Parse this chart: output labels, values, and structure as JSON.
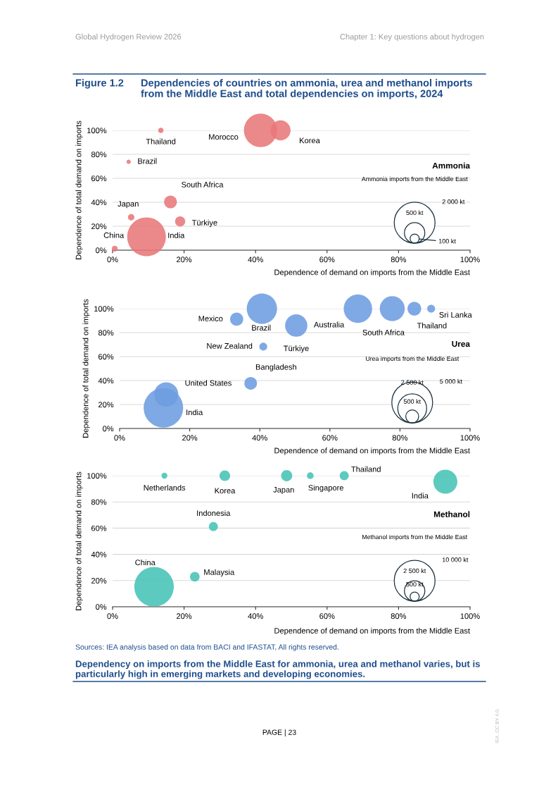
{
  "chart_data": [
    {
      "type": "bubble",
      "title": "Figure 1.2",
      "subtitle": "Dependencies of countries on ammonia, urea and methanol imports\nfrom the Middle East and total dependencies on imports, 2024",
      "xlabel": "Dependence of demand on imports from the Middle East",
      "ylabel": "Dependence of total demand on imports",
      "legend_title": "Ammonia imports from the Middle East",
      "series": [
        {
          "color": "#e8777a",
          "x": [
            13.5,
            4.5,
            41.4,
            47,
            16.2,
            5.2,
            18.9,
            9.5,
            0.6
          ],
          "values": [
            100,
            73.8,
            100,
            100,
            40.3,
            27.5,
            24,
            11.2,
            1.3
          ],
          "sizes": [
            34,
            22,
            1330,
            480,
            197,
            49,
            123,
            1800,
            41
          ]
        }
      ],
      "size_legend": [
        {
          "value": 2000,
          "label": "2 000 kt"
        },
        {
          "value": 500,
          "label": "500 kt"
        },
        {
          "value": 100,
          "label": "100 kt"
        }
      ],
      "xlim": [
        0,
        100
      ],
      "ylim": [
        0,
        100
      ],
      "xticks": [
        {
          "value": 0,
          "label": "0%"
        },
        {
          "value": 20,
          "label": "20%"
        },
        {
          "value": 40,
          "label": "40%"
        },
        {
          "value": 60,
          "label": "60%"
        },
        {
          "value": 80,
          "label": "80%"
        },
        {
          "value": 100,
          "label": "100%"
        }
      ],
      "yticks": [
        {
          "value": 0,
          "label": "0%"
        },
        {
          "value": 20,
          "label": "20%"
        },
        {
          "value": 40,
          "label": "40%"
        },
        {
          "value": 60,
          "label": "60%"
        },
        {
          "value": 80,
          "label": "80%"
        },
        {
          "value": 100,
          "label": "100%"
        }
      ],
      "grid": "y",
      "legend": false,
      "marker": "circle",
      "annotations": [
        "Global Hydrogen Review 2026",
        "Chapter 1: Key questions about hydrogen",
        "Ammonia",
        {
          "text": "Thailand",
          "x": 13.5,
          "y": 100
        },
        {
          "text": "Brazil",
          "x": 4.5,
          "y": 73.8
        },
        {
          "text": "Korea",
          "x": 47,
          "y": 100
        },
        {
          "text": "South Africa",
          "x": 16.2,
          "y": 40.3
        },
        {
          "text": "Japan",
          "x": 5.2,
          "y": 27.5
        },
        {
          "text": "Türkiye",
          "x": 18.9,
          "y": 24
        },
        {
          "text": "China",
          "x": 0.6,
          "y": 1.3
        },
        "Morocco",
        "India"
      ]
    },
    {
      "type": "bubble",
      "xlabel": "Dependence of demand on imports from the Middle East",
      "ylabel": "Dependence of total demand on imports",
      "legend_title": "Urea imports from the Middle East",
      "series": [
        {
          "color": "#6d9de0",
          "x": [
            33.4,
            40.6,
            50.4,
            41,
            68,
            77.8,
            84.1,
            88.9,
            37.4,
            13.3,
            12.5
          ],
          "values": [
            91.2,
            100,
            85.9,
            68.3,
            100,
            100,
            100,
            100,
            37.7,
            28.4,
            17.2
          ],
          "sizes": [
            520,
            2750,
            1500,
            187,
            2430,
            1880,
            563,
            187,
            480,
            1760,
            4680
          ]
        }
      ],
      "size_legend": [
        {
          "value": 5000,
          "label": "5 000 kt"
        },
        {
          "value": 2500,
          "label": "2 500 kt"
        },
        {
          "value": 500,
          "label": "500 kt"
        }
      ],
      "xlim": [
        0,
        100
      ],
      "ylim": [
        0,
        100
      ],
      "xticks": [
        {
          "value": 0,
          "label": "0%"
        },
        {
          "value": 20,
          "label": "20%"
        },
        {
          "value": 40,
          "label": "40%"
        },
        {
          "value": 60,
          "label": "60%"
        },
        {
          "value": 80,
          "label": "80%"
        },
        {
          "value": 100,
          "label": "100%"
        }
      ],
      "yticks": [
        {
          "value": 0,
          "label": "0%"
        },
        {
          "value": 20,
          "label": "20%"
        },
        {
          "value": 40,
          "label": "40%"
        },
        {
          "value": 60,
          "label": "60%"
        },
        {
          "value": 80,
          "label": "80%"
        },
        {
          "value": 100,
          "label": "100%"
        }
      ],
      "grid": "y",
      "legend": false,
      "marker": "circle",
      "annotations": [
        "Urea",
        {
          "text": "Mexico",
          "x": 33.4,
          "y": 91.2
        },
        {
          "text": "Türkiye",
          "x": 50.4,
          "y": 85.9
        },
        {
          "text": "New Zealand",
          "x": 41,
          "y": 68.3
        },
        {
          "text": "Australia",
          "x": 68,
          "y": 100
        },
        {
          "text": "South Africa",
          "x": 77.8,
          "y": 100
        },
        {
          "text": "Thailand",
          "x": 84.1,
          "y": 100
        },
        {
          "text": "Sri Lanka",
          "x": 88.9,
          "y": 100
        },
        {
          "text": "Bangladesh",
          "x": 37.4,
          "y": 37.7
        },
        {
          "text": "United States",
          "x": 13.3,
          "y": 28.4
        },
        "Brazil",
        "India"
      ]
    },
    {
      "type": "bubble",
      "xlabel": "Dependence of demand on imports from the Middle East",
      "ylabel": "Dependence of total demand on imports",
      "legend_title": "Methanol imports from the Middle East",
      "series": [
        {
          "color": "#45c3b6",
          "x": [
            14.5,
            31.4,
            48.7,
            55.3,
            64.8,
            93.1,
            28.2,
            11.6,
            23
          ],
          "values": [
            100,
            100,
            100,
            100,
            100,
            95.4,
            61.2,
            15.3,
            22.9
          ],
          "sizes": [
            210,
            680,
            750,
            270,
            490,
            3460,
            490,
            9360,
            550
          ]
        }
      ],
      "size_legend": [
        {
          "value": 10000,
          "label": "10 000 kt"
        },
        {
          "value": 2500,
          "label": "2 500 kt"
        },
        {
          "value": 500,
          "label": "500 kt"
        }
      ],
      "xlim": [
        0,
        100
      ],
      "ylim": [
        0,
        100
      ],
      "xticks": [
        {
          "value": 0,
          "label": "0%"
        },
        {
          "value": 20,
          "label": "20%"
        },
        {
          "value": 40,
          "label": "40%"
        },
        {
          "value": 60,
          "label": "60%"
        },
        {
          "value": 80,
          "label": "80%"
        },
        {
          "value": 100,
          "label": "100%"
        }
      ],
      "yticks": [
        {
          "value": 0,
          "label": "0%"
        },
        {
          "value": 20,
          "label": "20%"
        },
        {
          "value": 40,
          "label": "40%"
        },
        {
          "value": 60,
          "label": "60%"
        },
        {
          "value": 80,
          "label": "80%"
        },
        {
          "value": 100,
          "label": "100%"
        }
      ],
      "grid": "y",
      "legend": false,
      "marker": "circle",
      "annotations": [
        "Methanol",
        "Sources: IEA analysis based on data from BACI and IFASTAT, All rights reserved.",
        "Dependency on imports from the Middle East for ammonia, urea and methanol varies, but is\nparticularly high in emerging markets and developing economies.",
        "PAGE | 23",
        "IEA. CC BY 4.0.",
        {
          "text": "Netherlands",
          "x": 14.5,
          "y": 100
        },
        {
          "text": "Korea",
          "x": 31.4,
          "y": 100
        },
        {
          "text": "Japan",
          "x": 48.7,
          "y": 100
        },
        {
          "text": "Singapore",
          "x": 55.3,
          "y": 100
        },
        {
          "text": "Thailand",
          "x": 64.8,
          "y": 100
        },
        {
          "text": "India",
          "x": 93.1,
          "y": 95.4
        },
        {
          "text": "Indonesia",
          "x": 28.2,
          "y": 61.2
        },
        {
          "text": "Malaysia",
          "x": 23,
          "y": 22.9
        },
        "China"
      ]
    }
  ]
}
